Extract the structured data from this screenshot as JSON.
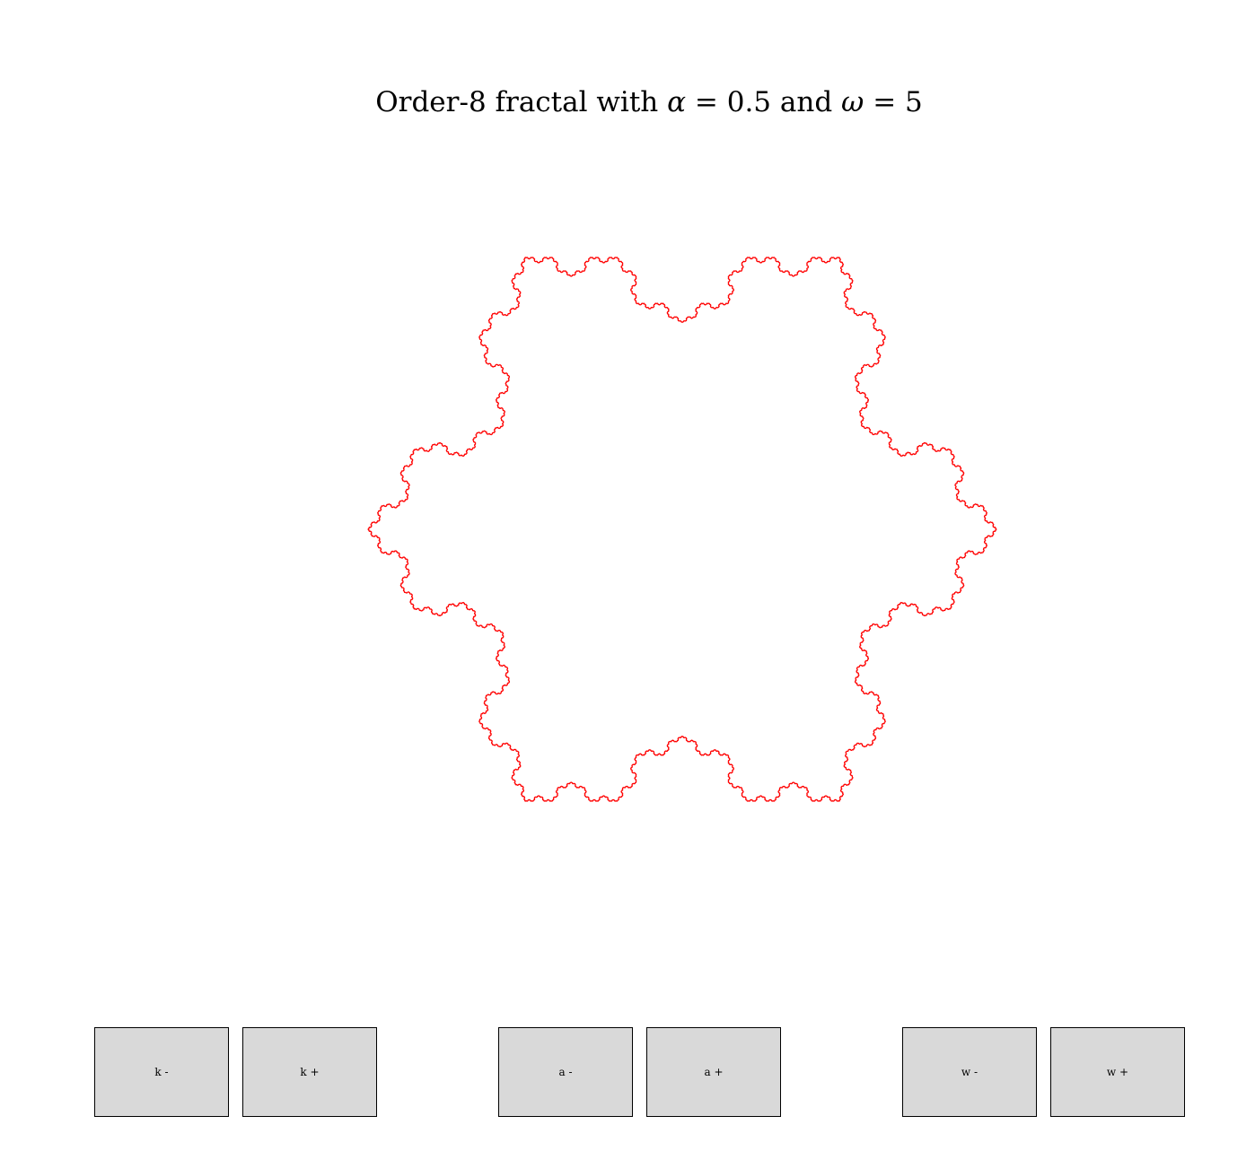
{
  "title": {
    "prefix": "Order-8 fractal with",
    "alpha_symbol": "α",
    "eq1": "= 0.5 and",
    "omega_symbol": "ω",
    "eq2": "= 5"
  },
  "fractal": {
    "order": 8,
    "alpha": 0.5,
    "omega": 5,
    "color": "#ff0000"
  },
  "controls": {
    "k_minus": "k -",
    "k_plus": "k +",
    "a_minus": "a -",
    "a_plus": "a +",
    "w_minus": "w -",
    "w_plus": "w +"
  },
  "colors": {
    "button_bg": "#d9d9d9",
    "curve": "#ff0000"
  }
}
